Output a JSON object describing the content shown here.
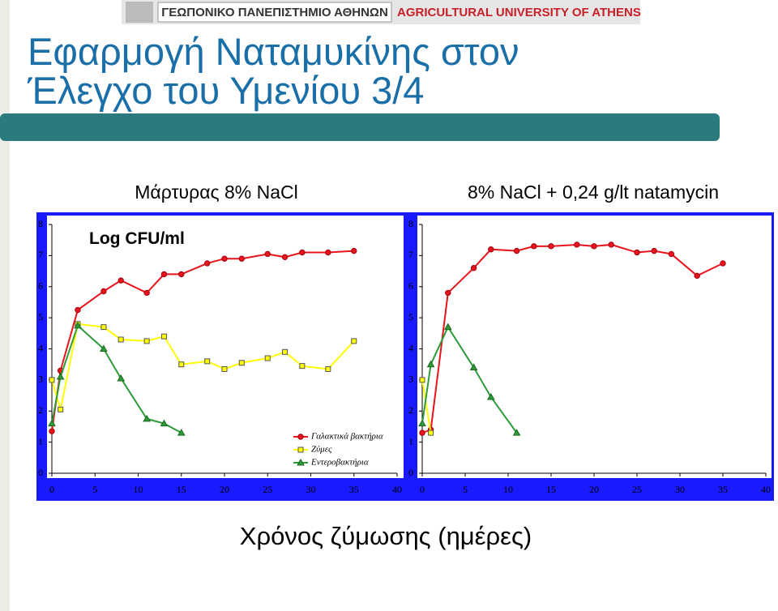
{
  "header": {
    "greek": "ΓΕΩΠΟΝΙΚΟ ΠΑΝΕΠΙΣΤΗΜΙΟ ΑΘΗΝΩΝ",
    "english": "AGRICULTURAL UNIVERSITY OF ATHENS"
  },
  "title": [
    "Εφαρμογή Ναταμυκίνης στον",
    "Έλεγχο του Υμενίου 3/4"
  ],
  "xlabel": "Χρόνος ζύμωσης (ημέρες)",
  "chart_data": [
    {
      "type": "line",
      "title": "Μάρτυρας 8% NaCl",
      "ylabel": "Log CFU/ml",
      "xlim": [
        0,
        40
      ],
      "ylim": [
        0,
        8
      ],
      "xticks": [
        0,
        5,
        10,
        15,
        20,
        25,
        30,
        35,
        40
      ],
      "yticks": [
        0,
        1,
        2,
        3,
        4,
        5,
        6,
        7,
        8
      ],
      "legend": "bottom-right",
      "series": [
        {
          "name": "Γαλακτικά βακτήρια",
          "color": "#e8141c",
          "marker": "circle",
          "x": [
            0,
            1,
            3,
            6,
            8,
            11,
            13,
            15,
            18,
            20,
            22,
            25,
            27,
            29,
            32,
            35
          ],
          "values": [
            1.35,
            3.3,
            5.25,
            5.85,
            6.2,
            5.8,
            6.4,
            6.4,
            6.75,
            6.9,
            6.9,
            7.05,
            6.95,
            7.1,
            7.1,
            7.15
          ]
        },
        {
          "name": "Ζύμες",
          "color": "#ffff00",
          "marker": "square",
          "x": [
            0,
            1,
            3,
            6,
            8,
            11,
            13,
            15,
            18,
            20,
            22,
            25,
            27,
            29,
            32,
            35
          ],
          "values": [
            3.0,
            2.05,
            4.8,
            4.7,
            4.3,
            4.25,
            4.4,
            3.5,
            3.6,
            3.35,
            3.55,
            3.7,
            3.9,
            3.45,
            3.35,
            4.25
          ]
        },
        {
          "name": "Εντεροβακτήρια",
          "color": "#2e9a3a",
          "marker": "triangle",
          "x": [
            0,
            1,
            3,
            6,
            8,
            11,
            13,
            15
          ],
          "values": [
            1.6,
            3.1,
            4.75,
            4.0,
            3.05,
            1.75,
            1.6,
            1.3
          ]
        }
      ]
    },
    {
      "type": "line",
      "title": "8% NaCl + 0,24 g/lt natamycin",
      "xlim": [
        0,
        40
      ],
      "ylim": [
        0,
        8
      ],
      "xticks": [
        0,
        5,
        10,
        15,
        20,
        25,
        30,
        35,
        40
      ],
      "yticks": [
        0,
        1,
        2,
        3,
        4,
        5,
        6,
        7,
        8
      ],
      "series": [
        {
          "name": "Γαλακτικά βακτήρια",
          "color": "#e8141c",
          "marker": "circle",
          "x": [
            0,
            1,
            3,
            6,
            8,
            11,
            13,
            15,
            18,
            20,
            22,
            25,
            27,
            29,
            32,
            35
          ],
          "values": [
            1.3,
            1.4,
            5.8,
            6.6,
            7.2,
            7.15,
            7.3,
            7.3,
            7.35,
            7.3,
            7.35,
            7.1,
            7.15,
            7.05,
            6.35,
            6.75
          ]
        },
        {
          "name": "Ζύμες",
          "color": "#ffff00",
          "marker": "square",
          "x": [
            0,
            1
          ],
          "values": [
            3.0,
            1.3
          ]
        },
        {
          "name": "Εντεροβακτήρια",
          "color": "#2e9a3a",
          "marker": "triangle",
          "x": [
            0,
            1,
            3,
            6,
            8,
            11
          ],
          "values": [
            1.6,
            3.5,
            4.7,
            3.4,
            2.45,
            1.3
          ]
        }
      ]
    }
  ]
}
